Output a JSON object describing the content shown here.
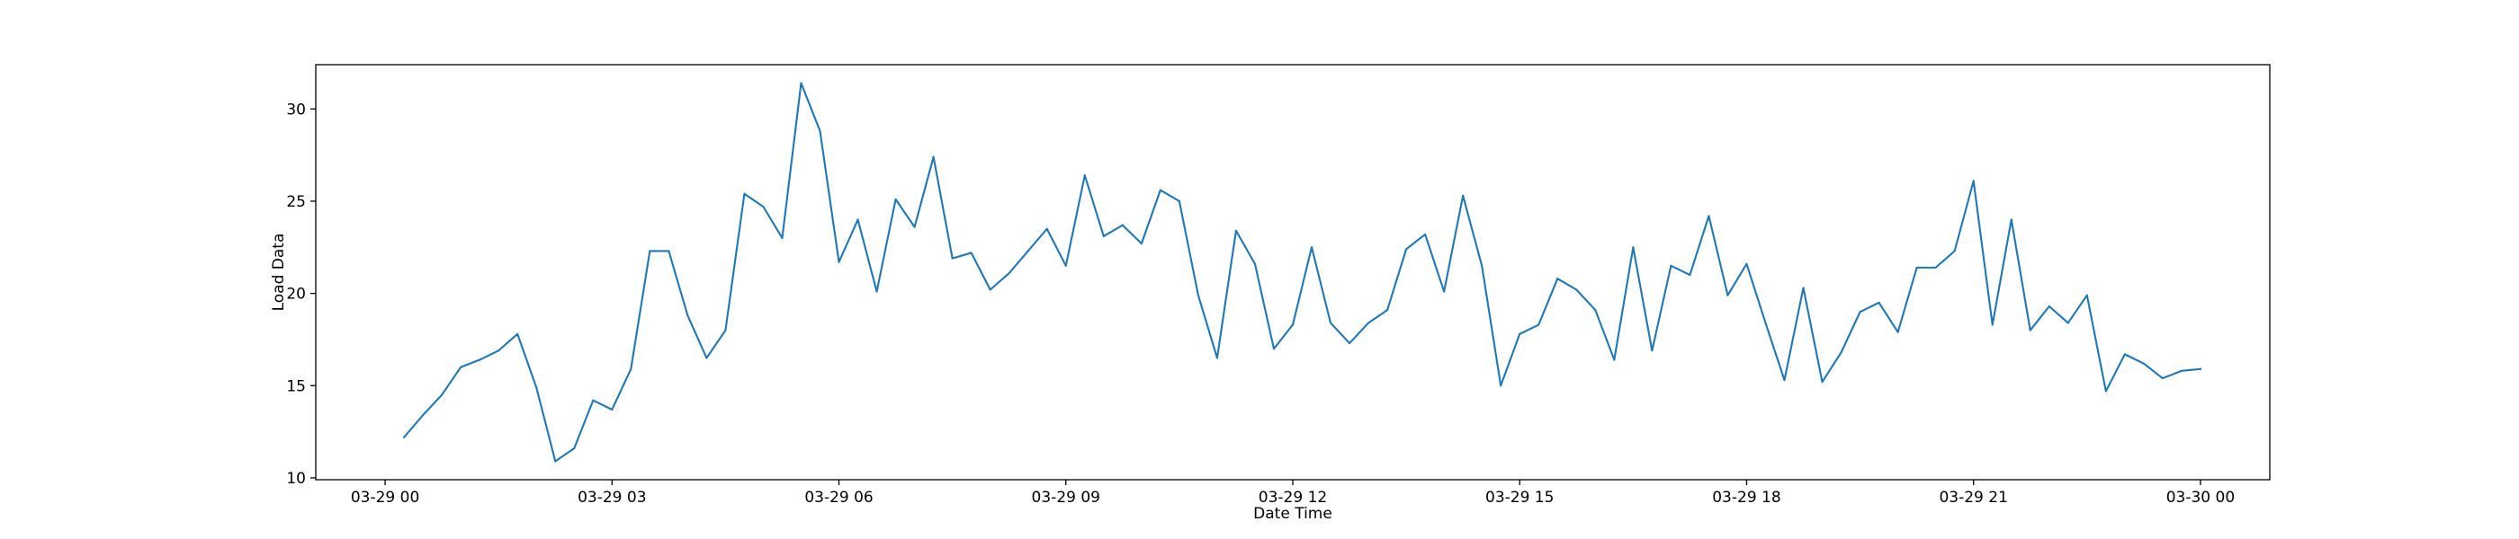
{
  "chart_data": {
    "type": "line",
    "title": "",
    "xlabel": "Date Time",
    "ylabel": "Load Data",
    "x_tick_labels": [
      "03-29 00",
      "03-29 03",
      "03-29 06",
      "03-29 09",
      "03-29 12",
      "03-29 15",
      "03-29 18",
      "03-29 21",
      "03-30 00"
    ],
    "x_tick_values": [
      "2024-03-29 00:00",
      "2024-03-29 03:00",
      "2024-03-29 06:00",
      "2024-03-29 09:00",
      "2024-03-29 12:00",
      "2024-03-29 15:00",
      "2024-03-29 18:00",
      "2024-03-29 21:00",
      "2024-03-30 00:00"
    ],
    "y_tick_labels": [
      "10",
      "15",
      "20",
      "25",
      "30"
    ],
    "y_tick_values": [
      10,
      15,
      20,
      25,
      30
    ],
    "xlim": [
      "2024-03-28 23:05",
      "2024-03-30 00:55"
    ],
    "ylim": [
      9.9,
      32.4
    ],
    "grid": false,
    "legend": "none",
    "line_color": "#1f77b4",
    "series": [
      {
        "x": [
          "2024-03-29 00:15",
          "2024-03-29 00:30",
          "2024-03-29 00:45",
          "2024-03-29 01:00",
          "2024-03-29 01:15",
          "2024-03-29 01:30",
          "2024-03-29 01:45",
          "2024-03-29 02:00",
          "2024-03-29 02:15",
          "2024-03-29 02:30",
          "2024-03-29 02:45",
          "2024-03-29 03:00",
          "2024-03-29 03:15",
          "2024-03-29 03:30",
          "2024-03-29 03:45",
          "2024-03-29 04:00",
          "2024-03-29 04:15",
          "2024-03-29 04:30",
          "2024-03-29 04:45",
          "2024-03-29 05:00",
          "2024-03-29 05:15",
          "2024-03-29 05:30",
          "2024-03-29 05:45",
          "2024-03-29 06:00",
          "2024-03-29 06:15",
          "2024-03-29 06:30",
          "2024-03-29 06:45",
          "2024-03-29 07:00",
          "2024-03-29 07:15",
          "2024-03-29 07:30",
          "2024-03-29 07:45",
          "2024-03-29 08:00",
          "2024-03-29 08:15",
          "2024-03-29 08:30",
          "2024-03-29 08:45",
          "2024-03-29 09:00",
          "2024-03-29 09:15",
          "2024-03-29 09:30",
          "2024-03-29 09:45",
          "2024-03-29 10:00",
          "2024-03-29 10:15",
          "2024-03-29 10:30",
          "2024-03-29 10:45",
          "2024-03-29 11:00",
          "2024-03-29 11:15",
          "2024-03-29 11:30",
          "2024-03-29 11:45",
          "2024-03-29 12:00",
          "2024-03-29 12:15",
          "2024-03-29 12:30",
          "2024-03-29 12:45",
          "2024-03-29 13:00",
          "2024-03-29 13:15",
          "2024-03-29 13:30",
          "2024-03-29 13:45",
          "2024-03-29 14:00",
          "2024-03-29 14:15",
          "2024-03-29 14:30",
          "2024-03-29 14:45",
          "2024-03-29 15:00",
          "2024-03-29 15:15",
          "2024-03-29 15:30",
          "2024-03-29 15:45",
          "2024-03-29 16:00",
          "2024-03-29 16:15",
          "2024-03-29 16:30",
          "2024-03-29 16:45",
          "2024-03-29 17:00",
          "2024-03-29 17:15",
          "2024-03-29 17:30",
          "2024-03-29 17:45",
          "2024-03-29 18:00",
          "2024-03-29 18:15",
          "2024-03-29 18:30",
          "2024-03-29 18:45",
          "2024-03-29 19:00",
          "2024-03-29 19:15",
          "2024-03-29 19:30",
          "2024-03-29 19:45",
          "2024-03-29 20:00",
          "2024-03-29 20:15",
          "2024-03-29 20:30",
          "2024-03-29 20:45",
          "2024-03-29 21:00",
          "2024-03-29 21:15",
          "2024-03-29 21:30",
          "2024-03-29 21:45",
          "2024-03-29 22:00",
          "2024-03-29 22:15",
          "2024-03-29 22:30",
          "2024-03-29 22:45",
          "2024-03-29 23:00",
          "2024-03-29 23:15",
          "2024-03-29 23:30",
          "2024-03-29 23:45",
          "2024-03-30 00:00"
        ],
        "values": [
          12.2,
          13.4,
          14.5,
          16.0,
          16.4,
          16.9,
          17.8,
          14.9,
          10.9,
          11.6,
          14.2,
          13.7,
          15.9,
          22.3,
          22.3,
          18.8,
          16.5,
          18.0,
          25.4,
          24.7,
          23.0,
          31.4,
          28.8,
          21.7,
          24.0,
          20.1,
          25.1,
          23.6,
          27.4,
          21.9,
          22.2,
          20.2,
          21.1,
          22.3,
          23.5,
          21.5,
          26.4,
          23.1,
          23.7,
          22.7,
          25.6,
          25.0,
          19.9,
          16.5,
          23.4,
          21.6,
          17.0,
          18.3,
          22.5,
          18.4,
          17.3,
          18.4,
          19.1,
          22.4,
          23.2,
          20.1,
          25.3,
          21.5,
          15.0,
          17.8,
          18.3,
          20.8,
          20.2,
          19.1,
          16.4,
          22.5,
          16.9,
          21.5,
          21.0,
          24.2,
          19.9,
          21.6,
          18.4,
          15.3,
          20.3,
          15.2,
          16.8,
          19.0,
          19.5,
          17.9,
          21.4,
          21.4,
          22.3,
          26.1,
          18.3,
          24.0,
          18.0,
          19.3,
          18.4,
          19.9,
          14.7,
          16.7,
          16.2,
          15.4,
          15.8,
          15.9
        ]
      }
    ]
  }
}
